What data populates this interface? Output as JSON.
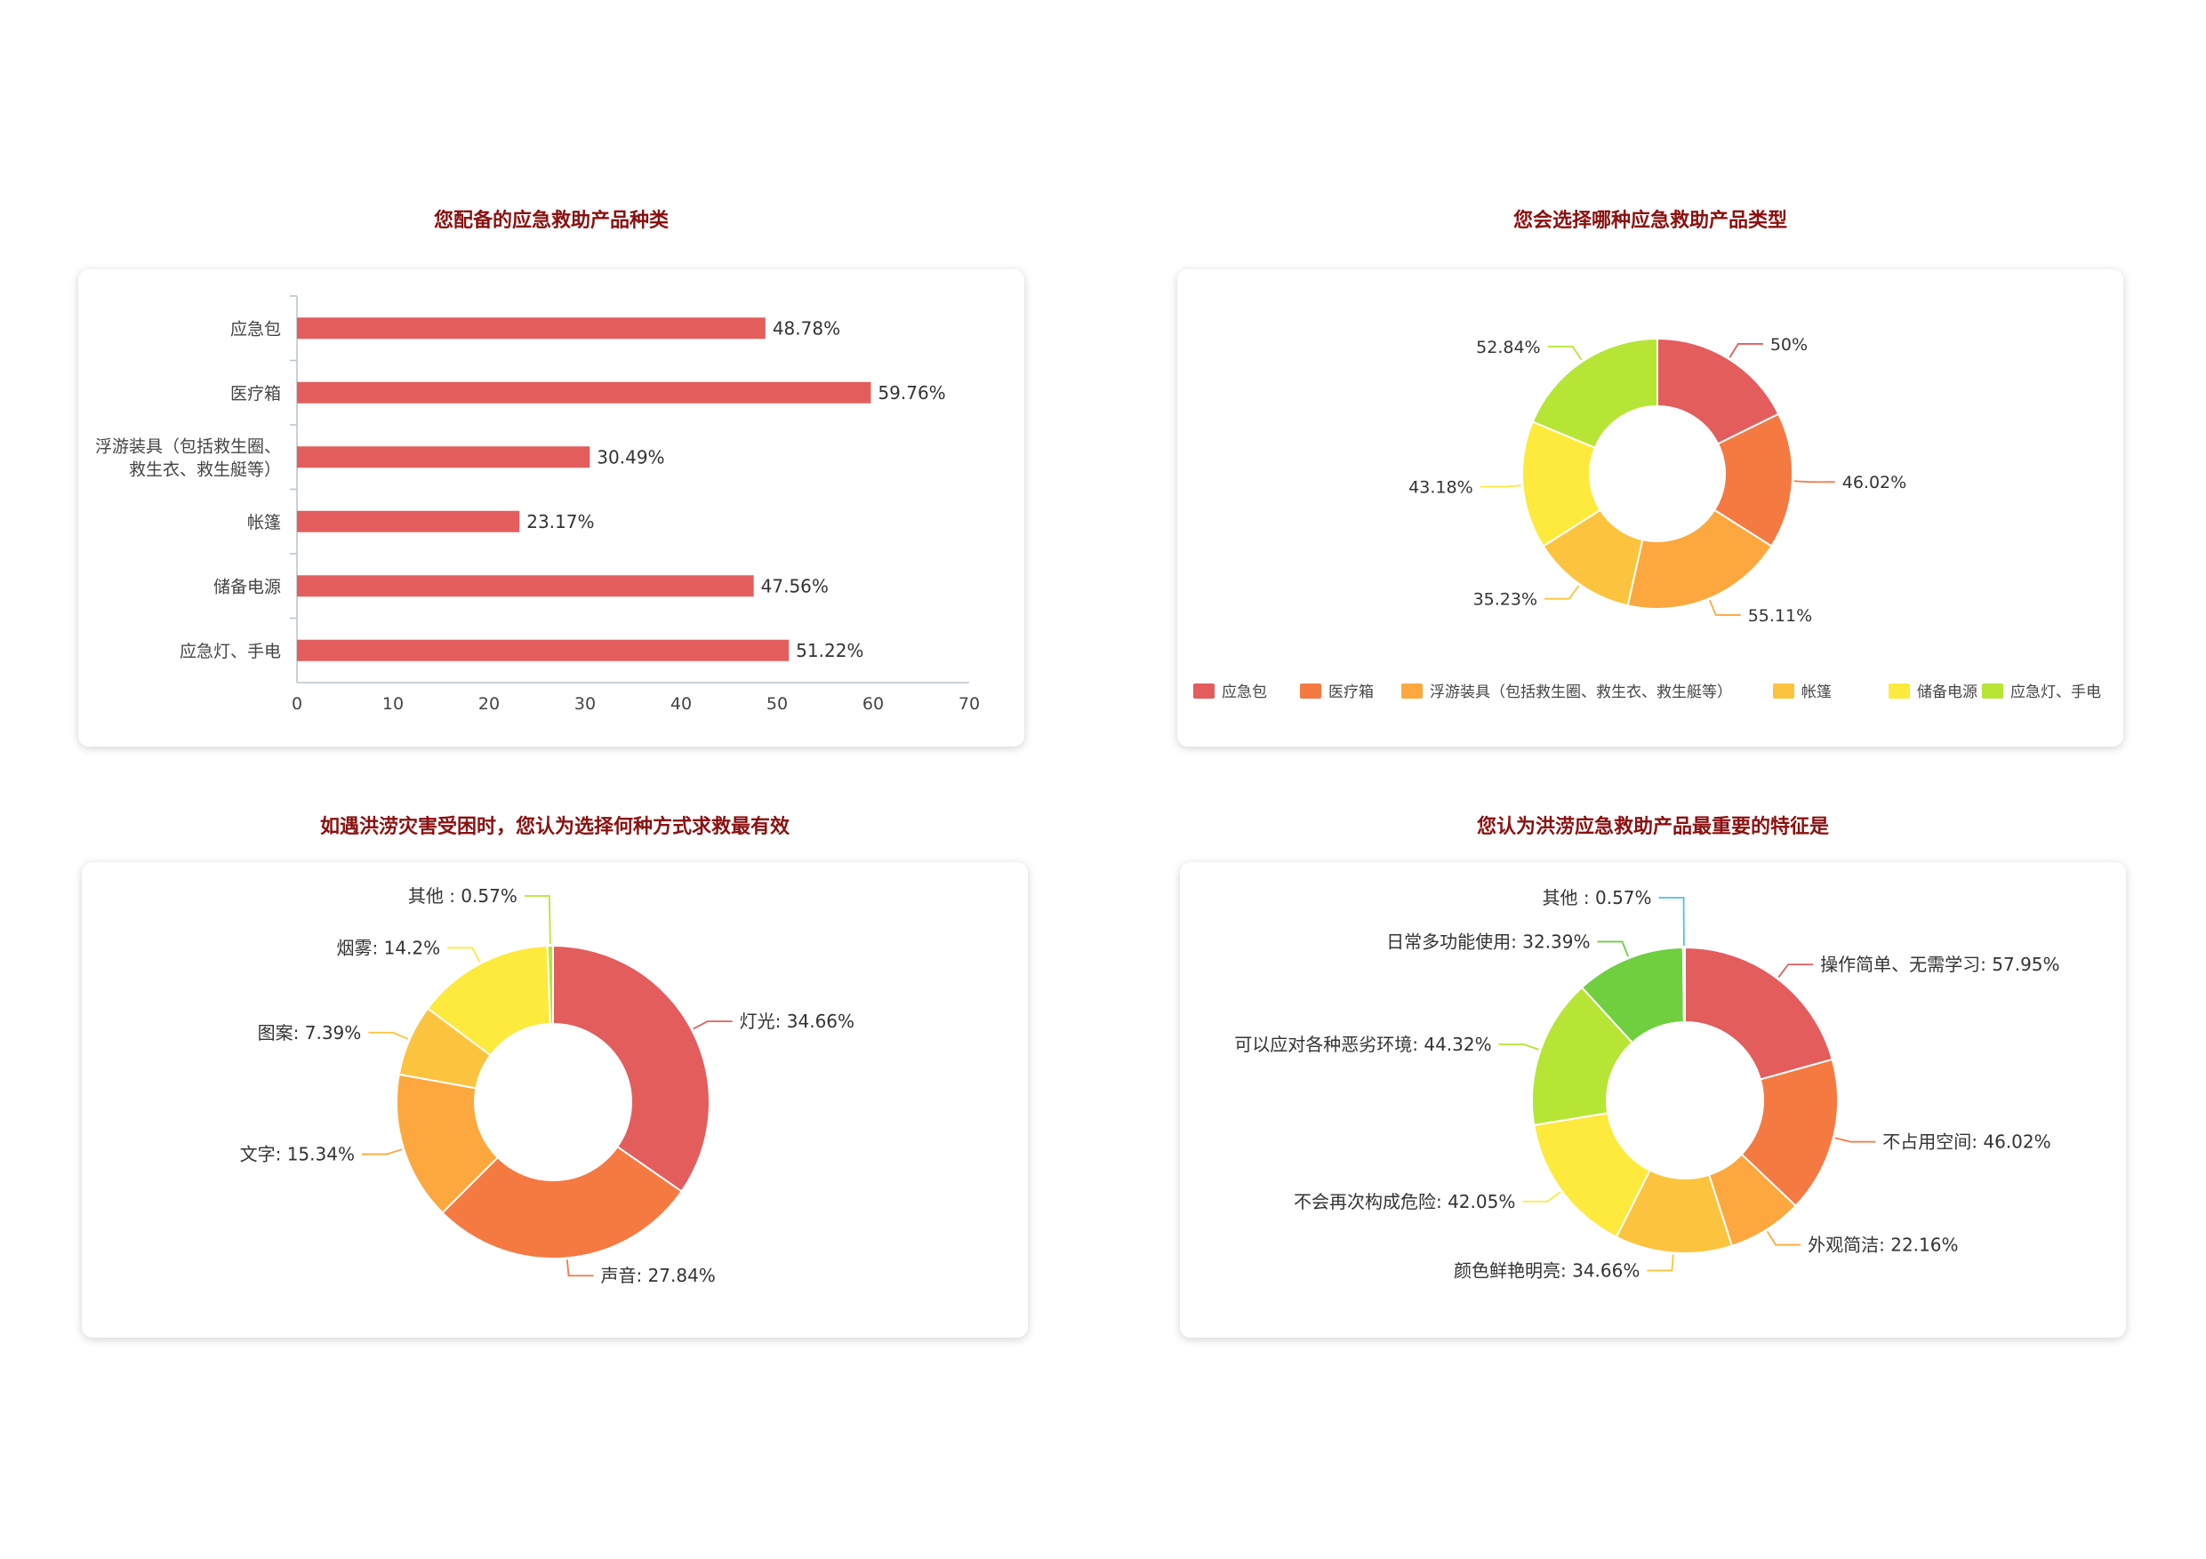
{
  "chart_data": [
    {
      "type": "bar",
      "orientation": "horizontal",
      "title": "您配备的应急救助产品种类",
      "categories": [
        [
          "应急包"
        ],
        [
          "医疗箱"
        ],
        [
          "浮游装具（包括救生圈、",
          "救生衣、救生艇等）"
        ],
        [
          "帐篷"
        ],
        [
          "储备电源"
        ],
        [
          "应急灯、手电"
        ]
      ],
      "values": [
        48.78,
        59.76,
        30.49,
        23.17,
        47.56,
        51.22
      ],
      "value_labels": [
        "48.78%",
        "59.76%",
        "30.49%",
        "23.17%",
        "47.56%",
        "51.22%"
      ],
      "xlim": [
        0,
        70
      ],
      "xticks": [
        "0",
        "10",
        "20",
        "30",
        "40",
        "50",
        "60",
        "70"
      ],
      "bar_color": "#e35d5d"
    },
    {
      "type": "pie",
      "variant": "donut",
      "title": "您会选择哪种应急救助产品类型",
      "slices": [
        {
          "name": "应急包",
          "value": 50,
          "label": "50%",
          "color": "#e35d5d"
        },
        {
          "name": "医疗箱",
          "value": 46.02,
          "label": "46.02%",
          "color": "#f47a42"
        },
        {
          "name": "浮游装具（包括救生圈、救生衣、救生艇等）",
          "value": 55.11,
          "label": "55.11%",
          "color": "#fca83e"
        },
        {
          "name": "帐篷",
          "value": 35.23,
          "label": "35.23%",
          "color": "#fcc43e"
        },
        {
          "name": "储备电源",
          "value": 43.18,
          "label": "43.18%",
          "color": "#fdea3c"
        },
        {
          "name": "应急灯、手电",
          "value": 52.84,
          "label": "52.84%",
          "color": "#b6e536"
        }
      ],
      "legend": "bottom"
    },
    {
      "type": "pie",
      "variant": "donut",
      "title": "如遇洪涝灾害受困时，您认为选择何种方式求救最有效",
      "slices": [
        {
          "name": "灯光",
          "value": 34.66,
          "label": "灯光: 34.66%",
          "color": "#e35d5d"
        },
        {
          "name": "声音",
          "value": 27.84,
          "label": "声音: 27.84%",
          "color": "#f47a42"
        },
        {
          "name": "文字",
          "value": 15.34,
          "label": "文字: 15.34%",
          "color": "#fca83e"
        },
        {
          "name": "图案",
          "value": 7.39,
          "label": "图案: 7.39%",
          "color": "#fcc43e"
        },
        {
          "name": "烟雾",
          "value": 14.2,
          "label": "烟雾: 14.2%",
          "color": "#fdea3c"
        },
        {
          "name": "其他",
          "value": 0.57,
          "label": "其他 : 0.57%",
          "color": "#b6e536"
        }
      ]
    },
    {
      "type": "pie",
      "variant": "donut",
      "title": "您认为洪涝应急救助产品最重要的特征是",
      "slices": [
        {
          "name": "操作简单、无需学习",
          "value": 57.95,
          "label": "操作简单、无需学习: 57.95%",
          "color": "#e35d5d"
        },
        {
          "name": "不占用空间",
          "value": 46.02,
          "label": "不占用空间: 46.02%",
          "color": "#f47a42"
        },
        {
          "name": "外观简洁",
          "value": 22.16,
          "label": "外观简洁: 22.16%",
          "color": "#fca83e"
        },
        {
          "name": "颜色鲜艳明亮",
          "value": 34.66,
          "label": "颜色鲜艳明亮: 34.66%",
          "color": "#fcc43e"
        },
        {
          "name": "不会再次构成危险",
          "value": 42.05,
          "label": "不会再次构成危险: 42.05%",
          "color": "#fdea3c"
        },
        {
          "name": "可以应对各种恶劣环境",
          "value": 44.32,
          "label": "可以应对各种恶劣环境: 44.32%",
          "color": "#b6e536"
        },
        {
          "name": "日常多功能使用",
          "value": 32.39,
          "label": "日常多功能使用: 32.39%",
          "color": "#6fcf3f"
        },
        {
          "name": "其他",
          "value": 0.57,
          "label": "其他 : 0.57%",
          "color": "#4fc3d9"
        }
      ]
    }
  ]
}
